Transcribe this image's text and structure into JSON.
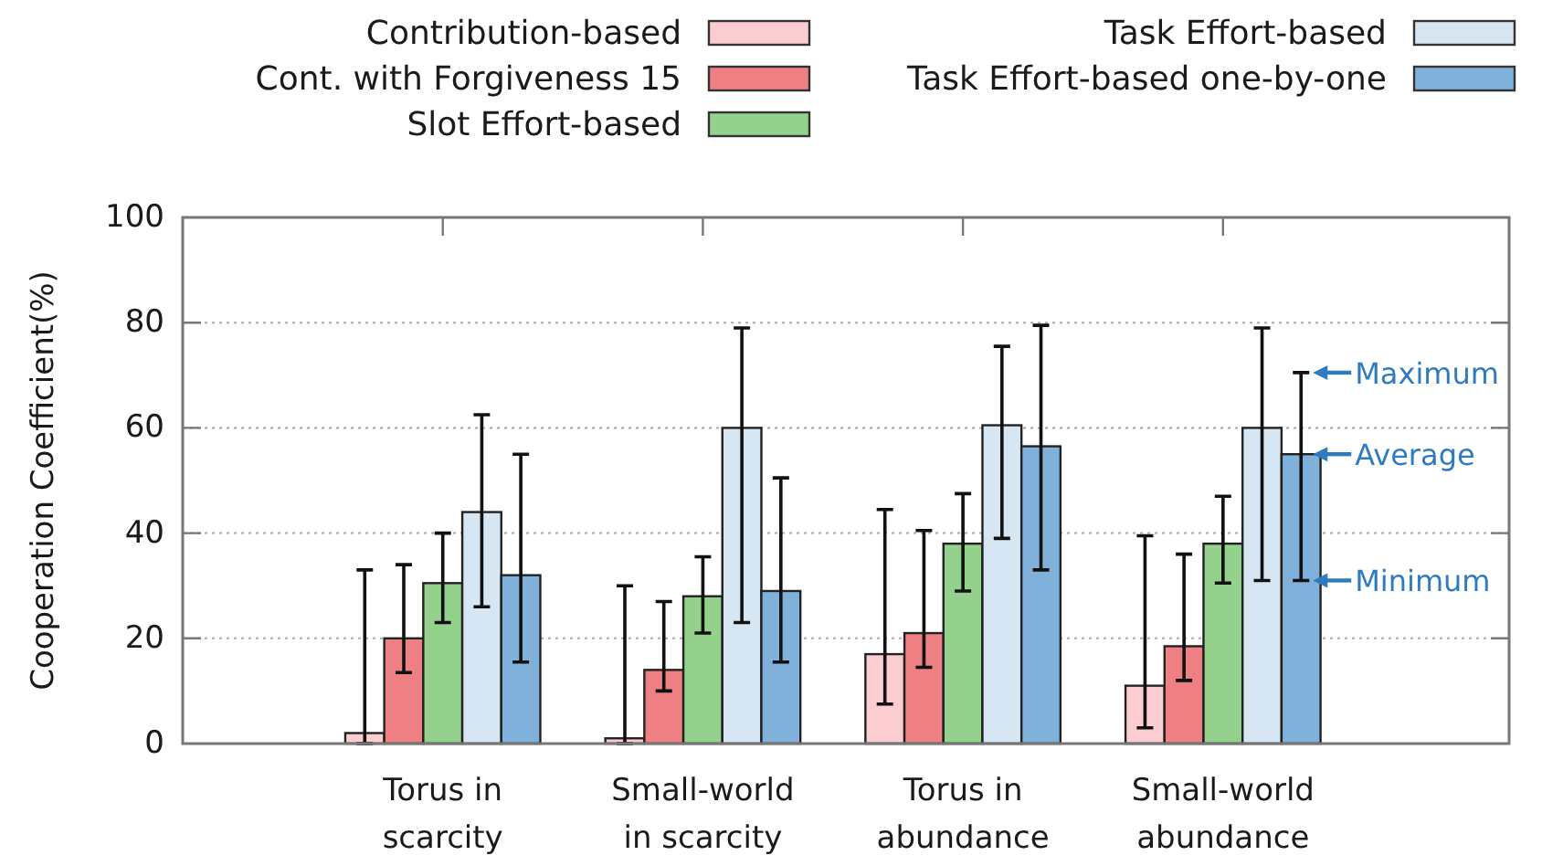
{
  "chart_data": {
    "type": "bar",
    "categories": [
      "Torus in\nscarcity",
      "Small-world\nin scarcity",
      "Torus in\nabundance",
      "Small-world\nabundance"
    ],
    "ylabel": "Cooperation Coefficient(%)",
    "ylim": [
      0,
      100
    ],
    "yticks": [
      0,
      20,
      40,
      60,
      80,
      100
    ],
    "grid": "y",
    "legend": "top",
    "series": [
      {
        "name": "Contribution-based",
        "color": "#fbcdd0",
        "values": [
          2,
          1,
          17,
          11
        ],
        "errors": [
          [
            0,
            33
          ],
          [
            0,
            30
          ],
          [
            7.5,
            44.5
          ],
          [
            3,
            39.5
          ]
        ]
      },
      {
        "name": "Cont. with Forgiveness 15",
        "color": "#ee7f83",
        "values": [
          20,
          14,
          21,
          18.5
        ],
        "errors": [
          [
            13.5,
            34
          ],
          [
            10,
            27
          ],
          [
            14.5,
            40.5
          ],
          [
            12,
            36
          ]
        ]
      },
      {
        "name": "Slot Effort-based",
        "color": "#94d18d",
        "values": [
          30.5,
          28,
          38,
          38
        ],
        "errors": [
          [
            23,
            40
          ],
          [
            21,
            35.5
          ],
          [
            29,
            47.5
          ],
          [
            30.5,
            47
          ]
        ]
      },
      {
        "name": "Task Effort-based",
        "color": "#d6e7f3",
        "values": [
          44,
          60,
          60.5,
          60
        ],
        "errors": [
          [
            26,
            62.5
          ],
          [
            23,
            79
          ],
          [
            39,
            75.5
          ],
          [
            31,
            79
          ]
        ]
      },
      {
        "name": "Task Effort-based one-by-one",
        "color": "#80b1da",
        "values": [
          32,
          29,
          56.5,
          55
        ],
        "errors": [
          [
            15.5,
            55
          ],
          [
            15.5,
            50.5
          ],
          [
            33,
            79.5
          ],
          [
            31,
            70.5
          ]
        ]
      }
    ],
    "annotations": [
      "Maximum",
      "Average",
      "Minimum"
    ]
  }
}
